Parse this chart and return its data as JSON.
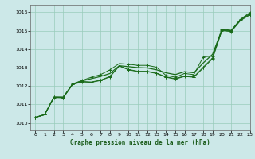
{
  "background_color": "#cce8e8",
  "grid_color": "#99ccbb",
  "line_color": "#1a6b1a",
  "title": "Graphe pression niveau de la mer (hPa)",
  "xlim": [
    -0.5,
    23
  ],
  "ylim": [
    1009.6,
    1016.4
  ],
  "xticks": [
    0,
    1,
    2,
    3,
    4,
    5,
    6,
    7,
    8,
    9,
    10,
    11,
    12,
    13,
    14,
    15,
    16,
    17,
    18,
    19,
    20,
    21,
    22,
    23
  ],
  "yticks": [
    1010,
    1011,
    1012,
    1013,
    1014,
    1015,
    1016
  ],
  "line_straight": [
    1010.3,
    1010.45,
    1011.4,
    1011.4,
    1012.1,
    1012.28,
    1012.4,
    1012.52,
    1012.68,
    1013.1,
    1013.05,
    1013.0,
    1012.98,
    1012.88,
    1012.72,
    1012.62,
    1012.78,
    1012.72,
    1013.25,
    1013.72,
    1015.05,
    1015.0,
    1015.6,
    1015.92
  ],
  "line_upper": [
    1010.3,
    1010.45,
    1011.4,
    1011.4,
    1012.12,
    1012.3,
    1012.48,
    1012.62,
    1012.88,
    1013.22,
    1013.18,
    1013.12,
    1013.12,
    1013.02,
    1012.58,
    1012.48,
    1012.68,
    1012.62,
    1013.58,
    1013.62,
    1015.08,
    1015.02,
    1015.62,
    1015.98
  ],
  "line_mid1": [
    1010.3,
    1010.45,
    1011.38,
    1011.36,
    1012.08,
    1012.22,
    1012.2,
    1012.3,
    1012.5,
    1013.08,
    1012.88,
    1012.78,
    1012.78,
    1012.68,
    1012.48,
    1012.38,
    1012.52,
    1012.48,
    1012.98,
    1013.48,
    1015.0,
    1014.95,
    1015.55,
    1015.85
  ],
  "line_mid2": [
    1010.3,
    1010.45,
    1011.4,
    1011.38,
    1012.1,
    1012.25,
    1012.22,
    1012.32,
    1012.52,
    1013.1,
    1012.9,
    1012.8,
    1012.8,
    1012.7,
    1012.5,
    1012.4,
    1012.55,
    1012.5,
    1013.02,
    1013.52,
    1015.02,
    1014.97,
    1015.57,
    1015.87
  ]
}
